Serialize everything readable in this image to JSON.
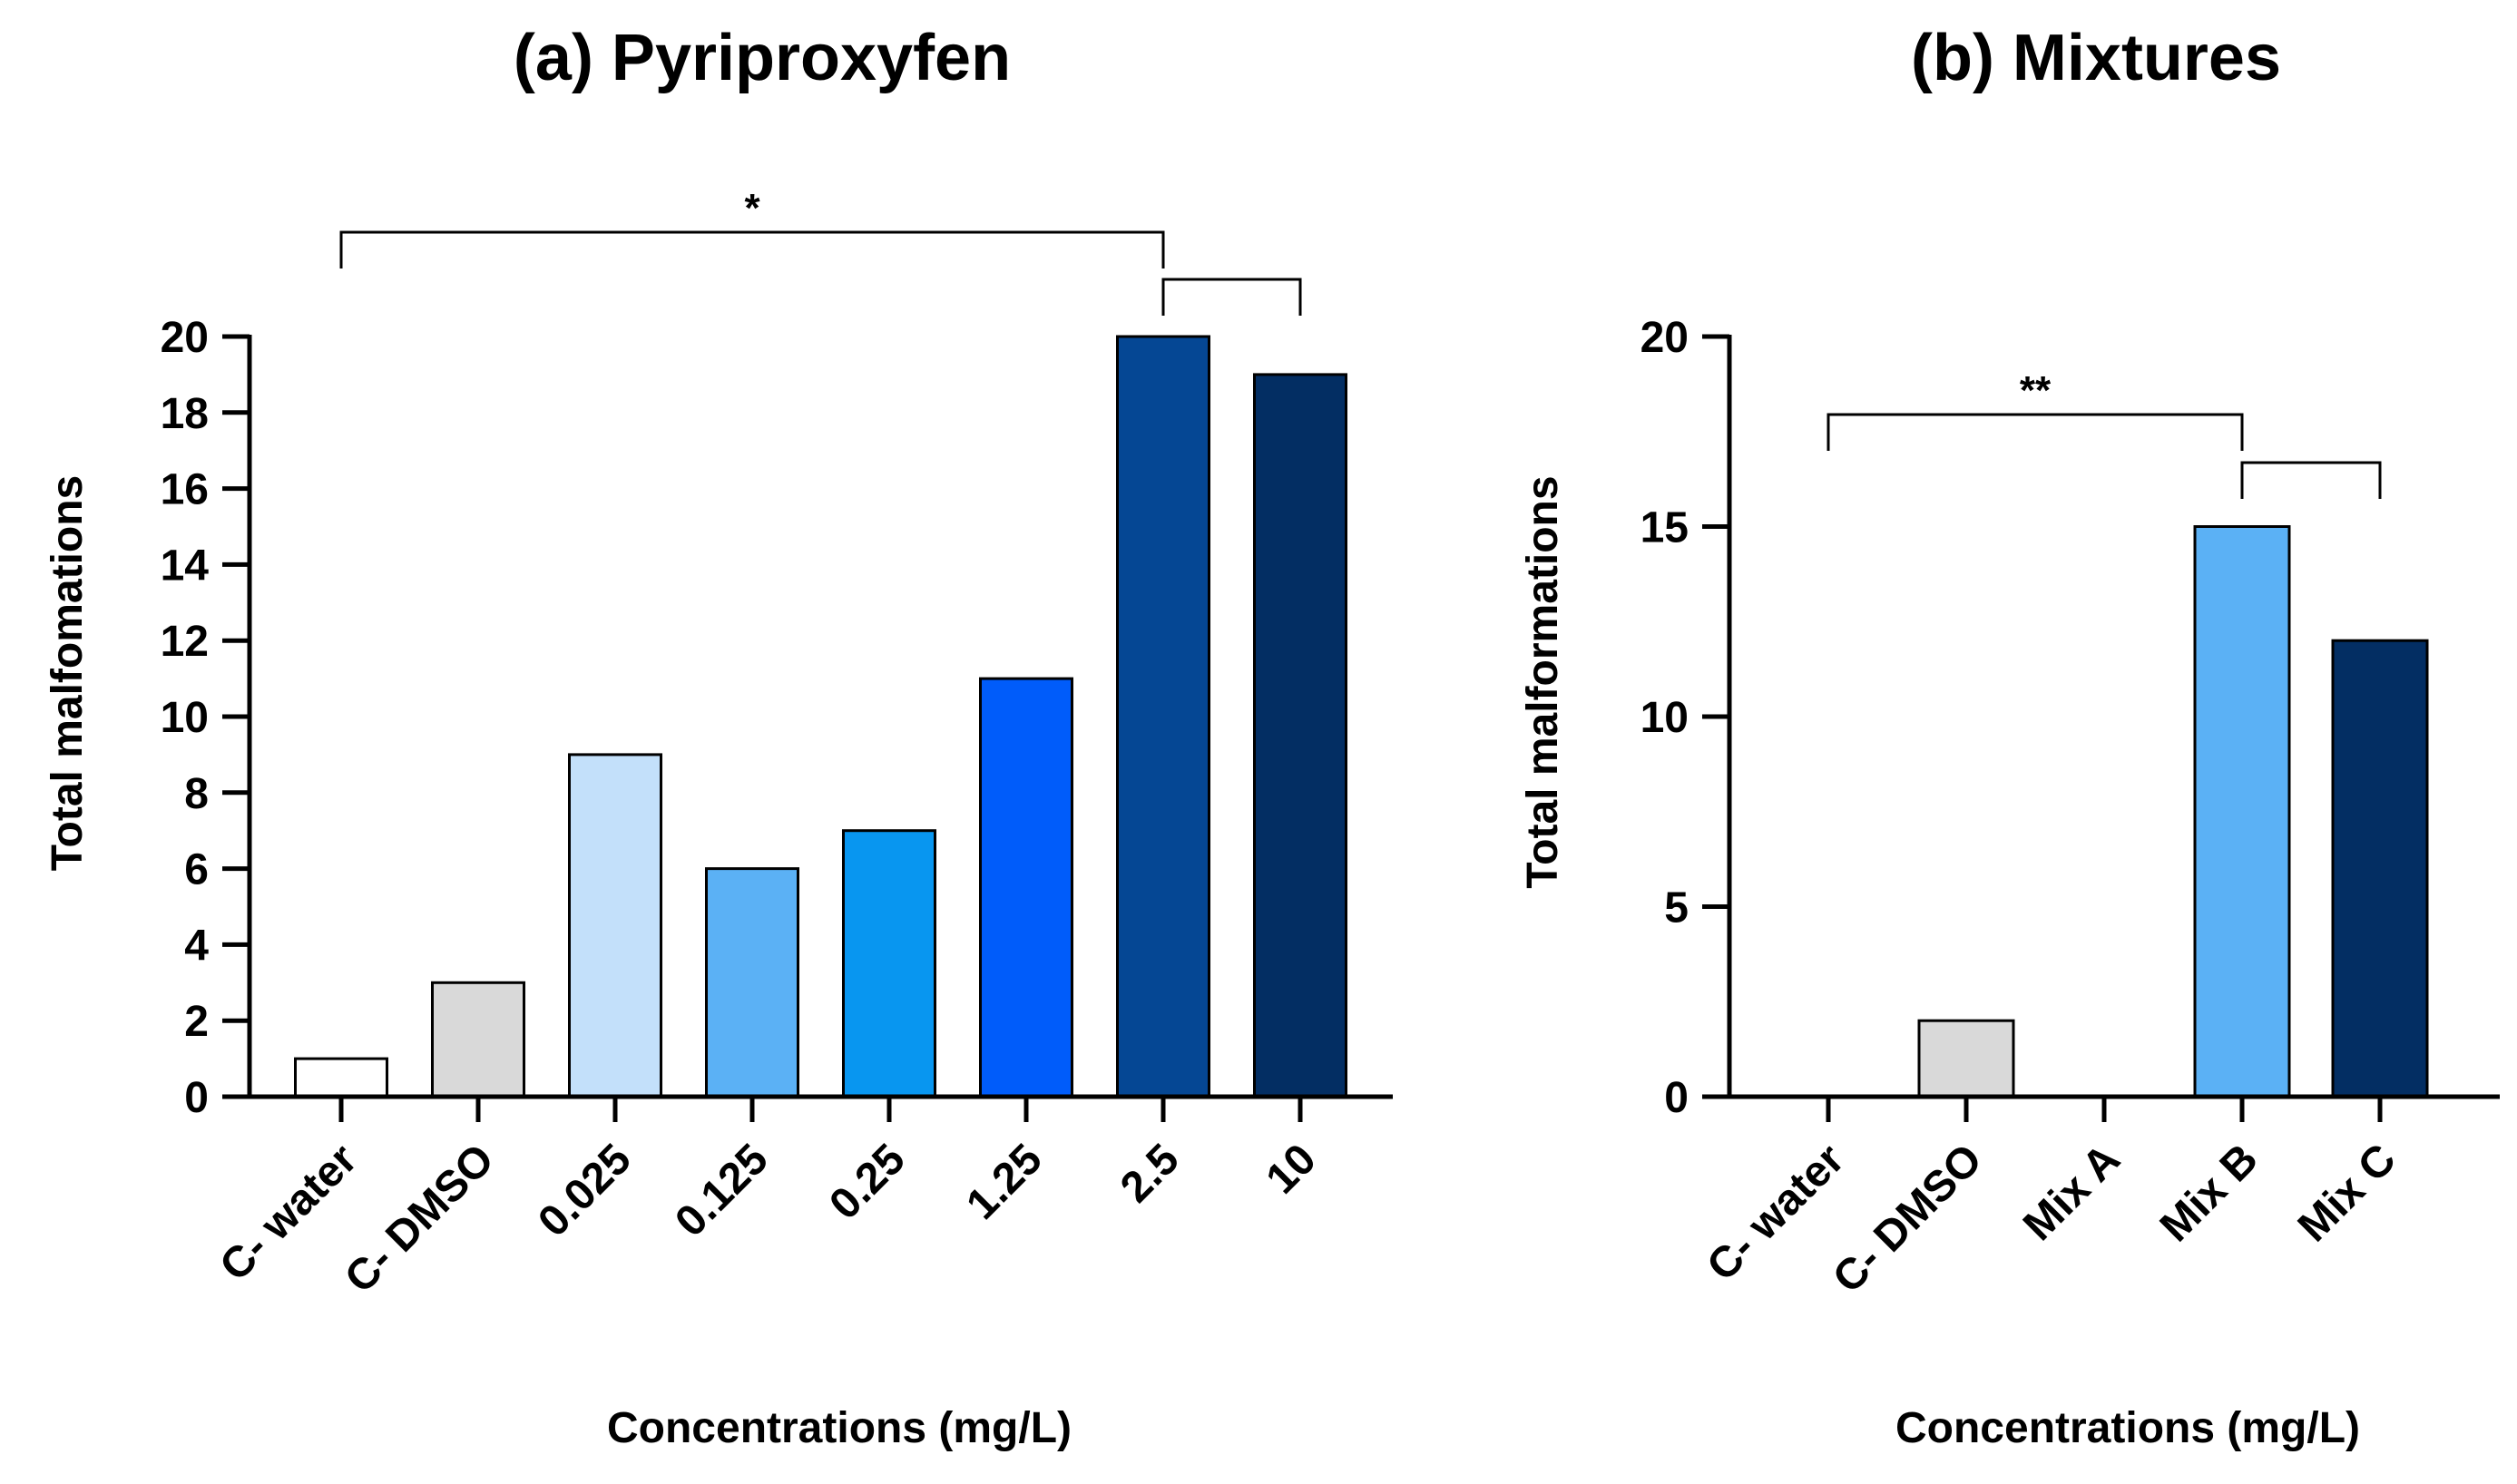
{
  "chart_data": [
    {
      "type": "bar",
      "title": "(a) Pyriproxyfen",
      "xlabel": "Concentrations (mg/L)",
      "ylabel": "Total malfomations",
      "ylim": [
        0,
        20
      ],
      "yticks": [
        "0",
        "2",
        "4",
        "6",
        "8",
        "10",
        "12",
        "14",
        "16",
        "18",
        "20"
      ],
      "categories": [
        "C- water",
        "C- DMSO",
        "0.025",
        "0.125",
        "0.25",
        "1.25",
        "2.5",
        "10"
      ],
      "values": [
        1,
        3,
        9,
        6,
        7,
        11,
        20,
        19
      ],
      "colors": [
        "#ffffff",
        "#d9d9d9",
        "#c3e0fa",
        "#5bb1f5",
        "#0896f0",
        "#005cfa",
        "#054794",
        "#032e63"
      ],
      "significance": [
        {
          "label": "*",
          "from": "C- water",
          "to": "2.5",
          "group_from": "2.5",
          "group_to": "10"
        }
      ]
    },
    {
      "type": "bar",
      "title": "(b) Mixtures",
      "xlabel": "Concentrations (mg/L)",
      "ylabel": "Total malformations",
      "ylim": [
        0,
        20
      ],
      "yticks": [
        "0",
        "5",
        "10",
        "15",
        "20"
      ],
      "categories": [
        "C- water",
        "C- DMSO",
        "Mix A",
        "Mix B",
        "Mix C"
      ],
      "values": [
        0,
        2,
        0,
        15,
        12
      ],
      "colors": [
        "#ffffff",
        "#d9d9d9",
        "#ffffff",
        "#5bb1f5",
        "#032e63"
      ],
      "significance": [
        {
          "label": "**",
          "from": "C- water",
          "to": "Mix B",
          "group_from": "Mix B",
          "group_to": "Mix C"
        }
      ]
    }
  ]
}
